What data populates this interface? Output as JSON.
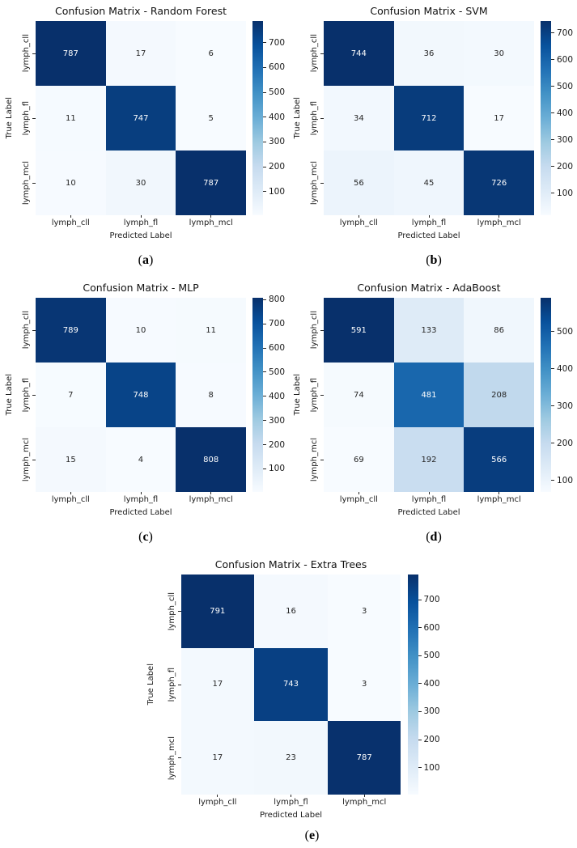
{
  "figure": {
    "background": "#ffffff"
  },
  "colormap": {
    "name": "Blues",
    "stops": [
      "#f7fbff",
      "#deebf7",
      "#c6dbef",
      "#9ecae1",
      "#6baed6",
      "#4292c6",
      "#2171b5",
      "#08519c",
      "#08306b"
    ]
  },
  "annotation_text_colors": {
    "on_dark": "#ffffff",
    "on_light": "#262626"
  },
  "chart_data": [
    {
      "type": "heatmap",
      "caption_letter": "a",
      "title": "Confusion Matrix - Random Forest",
      "xlabel": "Predicted Label",
      "ylabel": "True Label",
      "x_categories": [
        "lymph_cll",
        "lymph_fl",
        "lymph_mcl"
      ],
      "y_categories": [
        "lymph_cll",
        "lymph_fl",
        "lymph_mcl"
      ],
      "values": [
        [
          787,
          17,
          6
        ],
        [
          11,
          747,
          5
        ],
        [
          10,
          30,
          787
        ]
      ],
      "vmin": 5,
      "vmax": 787,
      "colorbar_ticks": [
        100,
        200,
        300,
        400,
        500,
        600,
        700
      ],
      "legend_position": "right-colorbar",
      "grid": false
    },
    {
      "type": "heatmap",
      "caption_letter": "b",
      "title": "Confusion Matrix - SVM",
      "xlabel": "Predicted Label",
      "ylabel": "True Label",
      "x_categories": [
        "lymph_cll",
        "lymph_fl",
        "lymph_mcl"
      ],
      "y_categories": [
        "lymph_cll",
        "lymph_fl",
        "lymph_mcl"
      ],
      "values": [
        [
          744,
          36,
          30
        ],
        [
          34,
          712,
          17
        ],
        [
          56,
          45,
          726
        ]
      ],
      "vmin": 17,
      "vmax": 744,
      "colorbar_ticks": [
        100,
        200,
        300,
        400,
        500,
        600,
        700
      ],
      "legend_position": "right-colorbar",
      "grid": false
    },
    {
      "type": "heatmap",
      "caption_letter": "c",
      "title": "Confusion Matrix - MLP",
      "xlabel": "Predicted Label",
      "ylabel": "True Label",
      "x_categories": [
        "lymph_cll",
        "lymph_fl",
        "lymph_mcl"
      ],
      "y_categories": [
        "lymph_cll",
        "lymph_fl",
        "lymph_mcl"
      ],
      "values": [
        [
          789,
          10,
          11
        ],
        [
          7,
          748,
          8
        ],
        [
          15,
          4,
          808
        ]
      ],
      "vmin": 4,
      "vmax": 808,
      "colorbar_ticks": [
        100,
        200,
        300,
        400,
        500,
        600,
        700,
        800
      ],
      "legend_position": "right-colorbar",
      "grid": false
    },
    {
      "type": "heatmap",
      "caption_letter": "d",
      "title": "Confusion Matrix - AdaBoost",
      "xlabel": "Predicted Label",
      "ylabel": "True Label",
      "x_categories": [
        "lymph_cll",
        "lymph_fl",
        "lymph_mcl"
      ],
      "y_categories": [
        "lymph_cll",
        "lymph_fl",
        "lymph_mcl"
      ],
      "values": [
        [
          591,
          133,
          86
        ],
        [
          74,
          481,
          208
        ],
        [
          69,
          192,
          566
        ]
      ],
      "vmin": 69,
      "vmax": 591,
      "colorbar_ticks": [
        100,
        200,
        300,
        400,
        500
      ],
      "legend_position": "right-colorbar",
      "grid": false
    },
    {
      "type": "heatmap",
      "caption_letter": "e",
      "title": "Confusion Matrix - Extra Trees",
      "xlabel": "Predicted Label",
      "ylabel": "True Label",
      "x_categories": [
        "lymph_cll",
        "lymph_fl",
        "lymph_mcl"
      ],
      "y_categories": [
        "lymph_cll",
        "lymph_fl",
        "lymph_mcl"
      ],
      "values": [
        [
          791,
          16,
          3
        ],
        [
          17,
          743,
          3
        ],
        [
          17,
          23,
          787
        ]
      ],
      "vmin": 3,
      "vmax": 791,
      "colorbar_ticks": [
        100,
        200,
        300,
        400,
        500,
        600,
        700
      ],
      "legend_position": "right-colorbar",
      "grid": false
    }
  ]
}
